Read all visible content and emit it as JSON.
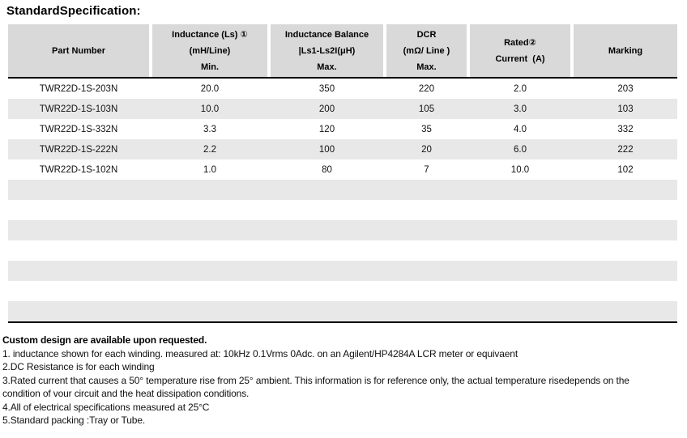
{
  "title": "StandardSpecification:",
  "table": {
    "columns": [
      {
        "lines": [
          "Part Number"
        ]
      },
      {
        "lines": [
          "Inductance (Ls) ①",
          "(mH/Line)",
          "Min."
        ]
      },
      {
        "lines": [
          "Inductance Balance",
          "|Ls1-Ls2I(μH)",
          "Max."
        ]
      },
      {
        "lines": [
          "DCR",
          "(mΩ/ Line )",
          "Max."
        ]
      },
      {
        "lines": [
          "Rated②",
          "Current  (A)"
        ]
      },
      {
        "lines": [
          "Marking"
        ]
      }
    ],
    "rows": [
      [
        "TWR22D-1S-203N",
        "20.0",
        "350",
        "220",
        "2.0",
        "203"
      ],
      [
        "TWR22D-1S-103N",
        "10.0",
        "200",
        "105",
        "3.0",
        "103"
      ],
      [
        "TWR22D-1S-332N",
        "3.3",
        "120",
        "35",
        "4.0",
        "332"
      ],
      [
        "TWR22D-1S-222N",
        "2.2",
        "100",
        "20",
        "6.0",
        "222"
      ],
      [
        "TWR22D-1S-102N",
        "1.0",
        "80",
        "7",
        "10.0",
        "102"
      ]
    ],
    "empty_row_count": 7
  },
  "notes": {
    "heading": "Custom design are available upon requested.",
    "items": [
      "1. inductance shown for each winding. measured at: 10kHz 0.1Vrms 0Adc. on an Agilent/HP4284A LCR meter or equivaent",
      "2.DC Resistance is for each winding",
      "3.Rated current that causes a 50° temperature rise from 25° ambient. This information is for reference only, the actual temperature risedepends on the condition of vour circuit and the heat dissipation conditions.",
      "4.All of electrical specifications measured at 25°C",
      "5.Standard packing :Tray or Tube."
    ]
  },
  "colors": {
    "header_bg": "#d9d9d9",
    "stripe_bg": "#e8e8e8",
    "border": "#000000"
  }
}
